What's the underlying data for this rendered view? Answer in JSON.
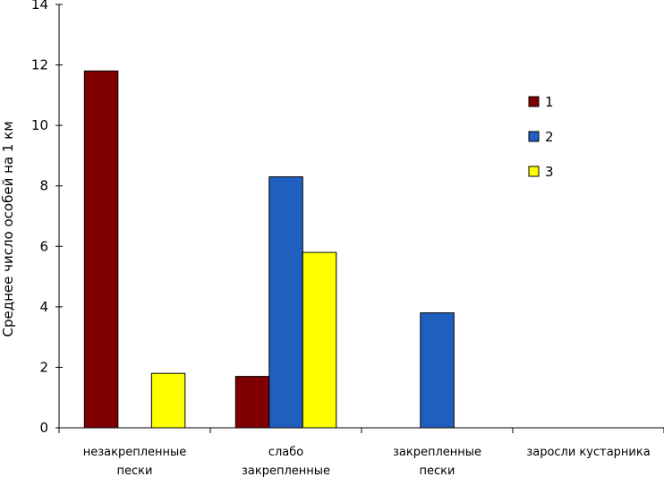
{
  "chart_data": {
    "type": "bar",
    "title": "",
    "xlabel": "",
    "ylabel": "Среднее число особей на 1 км",
    "ylim": [
      0,
      14
    ],
    "yticks": [
      0,
      2,
      4,
      6,
      8,
      10,
      12,
      14
    ],
    "categories": [
      [
        "незакрепленные",
        "пески"
      ],
      [
        "слабо",
        "закрепленные"
      ],
      [
        "закрепленные",
        "пески"
      ],
      [
        "заросли кустарника"
      ]
    ],
    "series": [
      {
        "name": "1",
        "color": "#7f0000",
        "values": [
          11.8,
          1.7,
          0,
          0
        ]
      },
      {
        "name": "2",
        "color": "#1f5fbf",
        "values": [
          0,
          8.3,
          3.8,
          0
        ]
      },
      {
        "name": "3",
        "color": "#ffff00",
        "values": [
          1.8,
          5.8,
          0,
          0
        ]
      }
    ],
    "legend_position": "right",
    "grid": false
  }
}
